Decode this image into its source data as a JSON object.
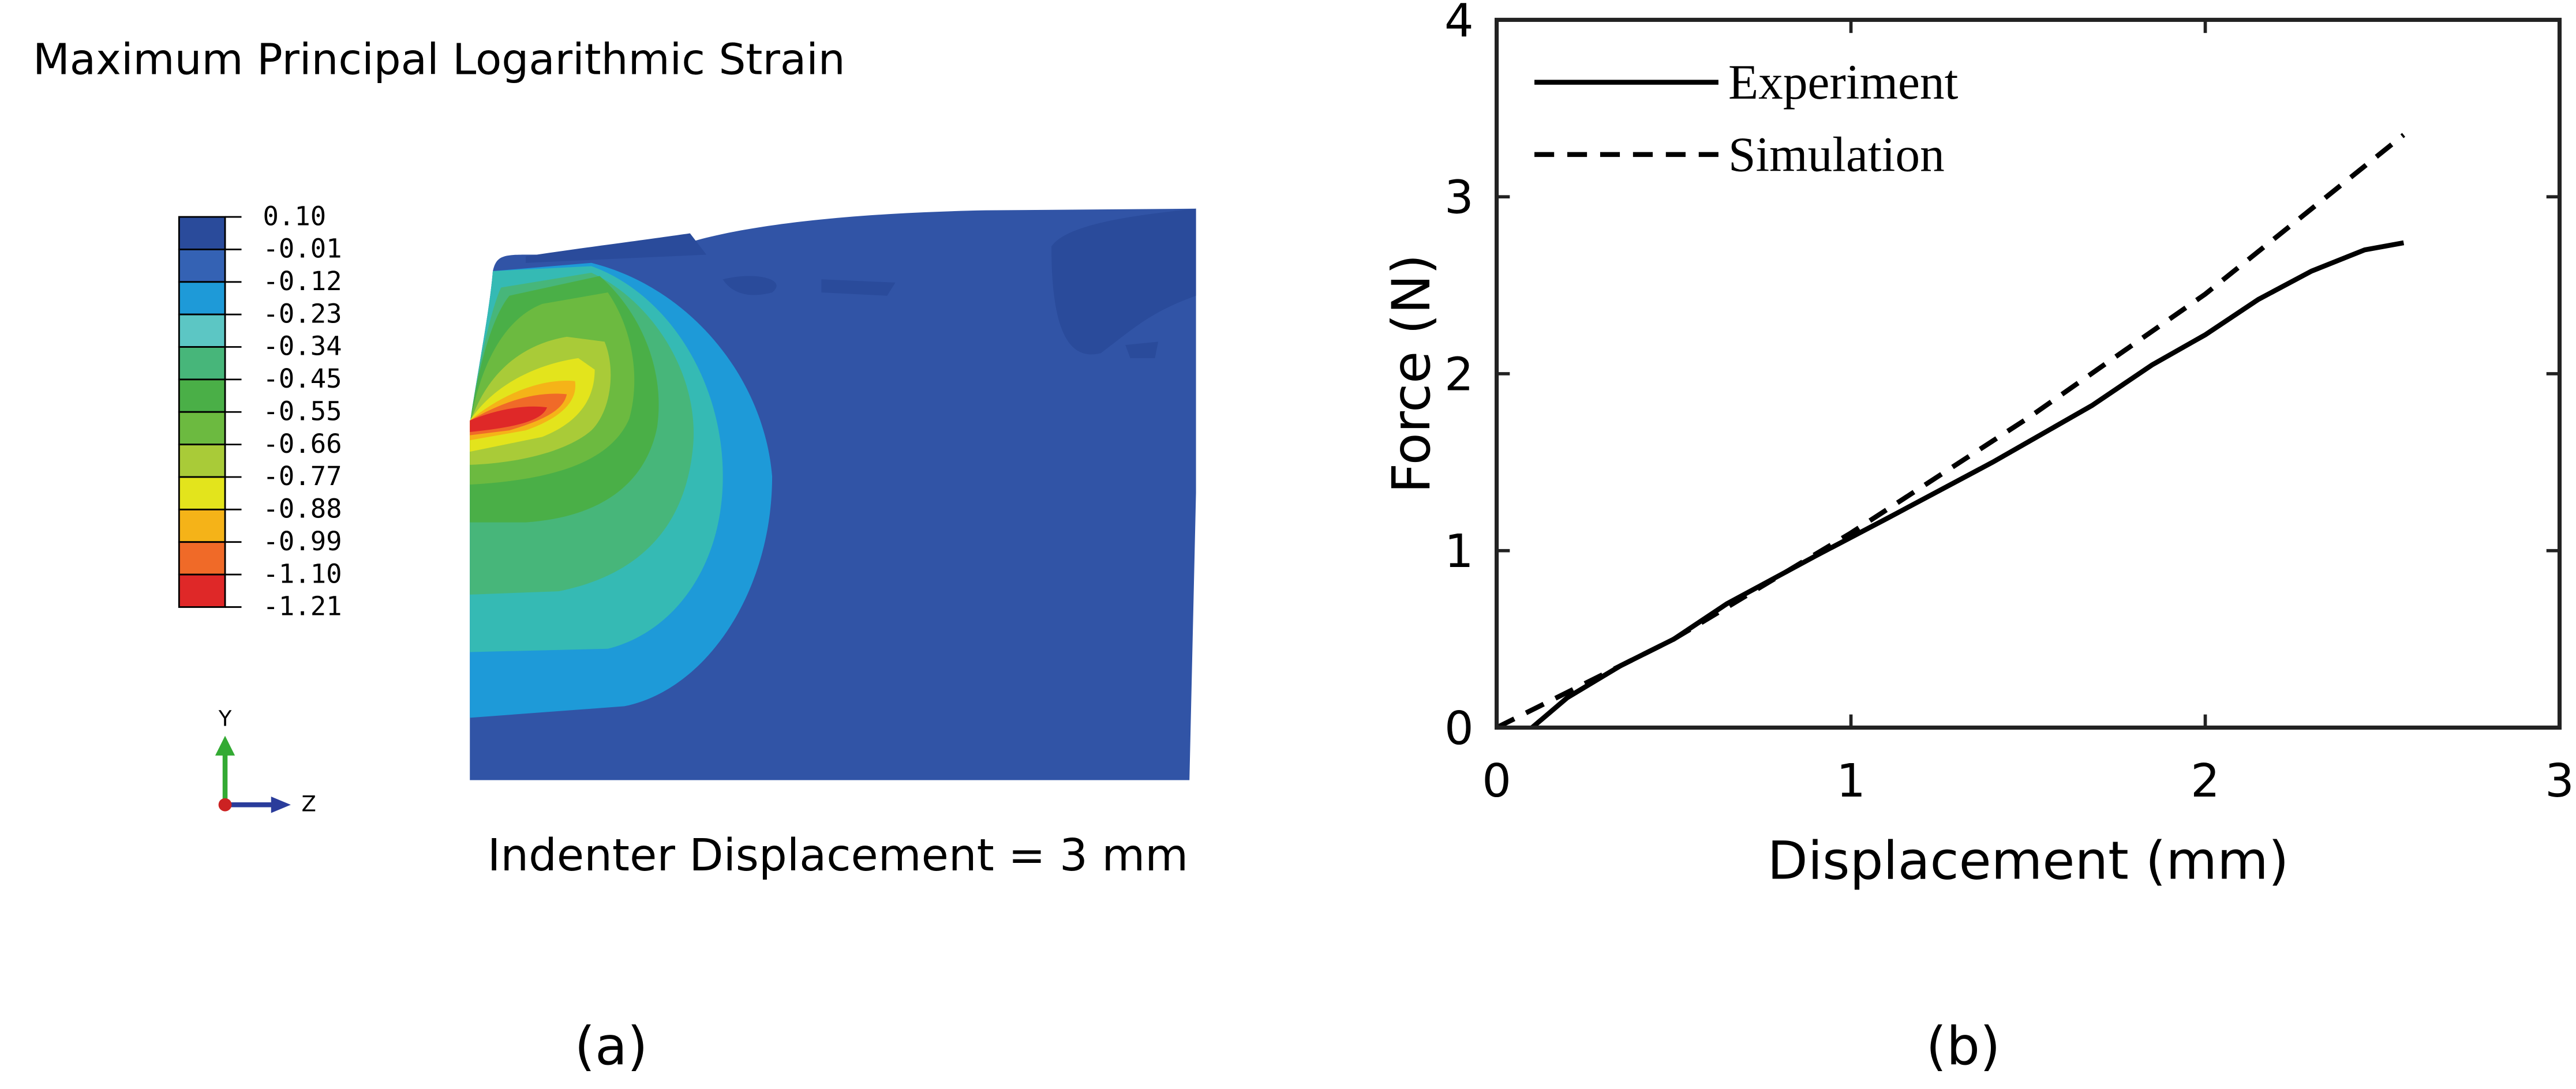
{
  "chart_data": [
    {
      "type": "contour",
      "title": "Maximum Principal Logarithmic Strain",
      "annotation": "Indenter Displacement = 3 mm",
      "caption": "(a)",
      "triad": {
        "y": "Y",
        "z": "Z"
      },
      "colorbar": {
        "ticks": [
          {
            "value": 0.1,
            "label": "0.10"
          },
          {
            "value": -0.01,
            "label": "-0.01"
          },
          {
            "value": -0.12,
            "label": "-0.12"
          },
          {
            "value": -0.23,
            "label": "-0.23"
          },
          {
            "value": -0.34,
            "label": "-0.34"
          },
          {
            "value": -0.45,
            "label": "-0.45"
          },
          {
            "value": -0.55,
            "label": "-0.55"
          },
          {
            "value": -0.66,
            "label": "-0.66"
          },
          {
            "value": -0.77,
            "label": "-0.77"
          },
          {
            "value": -0.88,
            "label": "-0.88"
          },
          {
            "value": -0.99,
            "label": "-0.99"
          },
          {
            "value": -1.1,
            "label": "-1.10"
          },
          {
            "value": -1.21,
            "label": "-1.21"
          }
        ],
        "colors": [
          "#2a4b9b",
          "#3462b4",
          "#1e9ad8",
          "#5cc6c4",
          "#47b67a",
          "#4aaf47",
          "#6cba40",
          "#a9cb38",
          "#e3e41c",
          "#f5b318",
          "#f06a28",
          "#df2828"
        ]
      }
    },
    {
      "type": "line",
      "xlabel": "Displacement (mm)",
      "ylabel": "Force (N)",
      "caption": "(b)",
      "xlim": [
        0,
        3
      ],
      "ylim": [
        0,
        4
      ],
      "xticks": [
        0,
        1,
        2,
        3
      ],
      "yticks": [
        0,
        1,
        2,
        3,
        4
      ],
      "legend": "upper left",
      "series": [
        {
          "name": "Experiment",
          "color": "#000000",
          "linestyle": "solid",
          "x": [
            0.1,
            0.2,
            0.35,
            0.5,
            0.65,
            0.9,
            1.1,
            1.4,
            1.68,
            1.85,
            2.0,
            2.15,
            2.3,
            2.45,
            2.56
          ],
          "values": [
            0,
            0.17,
            0.35,
            0.5,
            0.7,
            0.97,
            1.18,
            1.5,
            1.82,
            2.05,
            2.22,
            2.42,
            2.58,
            2.7,
            2.74
          ]
        },
        {
          "name": "Simulation",
          "color": "#000000",
          "linestyle": "dashed",
          "x": [
            0,
            0.5,
            1.0,
            1.5,
            2.0,
            2.56
          ],
          "values": [
            0,
            0.5,
            1.1,
            1.75,
            2.45,
            3.35
          ]
        }
      ]
    }
  ]
}
